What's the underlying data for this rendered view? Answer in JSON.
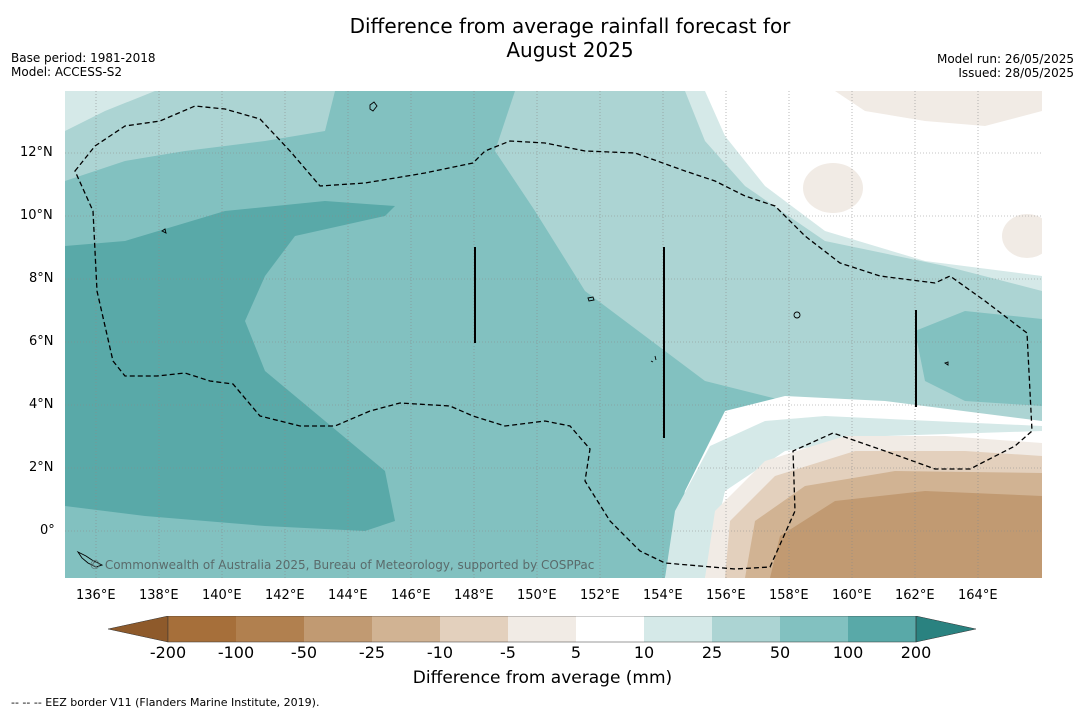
{
  "title_line1": "Difference from average rainfall forecast for",
  "title_line2": "August 2025",
  "base_period": "Base period: 1981-2018",
  "model": "Model: ACCESS-S2",
  "model_run": "Model run: 26/05/2025",
  "issued": "Issued: 28/05/2025",
  "copyright": "© Commonwealth of Australia 2025, Bureau of Meteorology, supported by COSPPac",
  "footnote": "-- -- -- EEZ border V11 (Flanders Marine Institute, 2019).",
  "colorbar_title": "Difference from average (mm)",
  "map": {
    "x_labels": [
      "136°E",
      "138°E",
      "140°E",
      "142°E",
      "144°E",
      "146°E",
      "148°E",
      "150°E",
      "152°E",
      "154°E",
      "156°E",
      "158°E",
      "160°E",
      "162°E",
      "164°E"
    ],
    "y_labels": [
      "12°N",
      "10°N",
      "8°N",
      "6°N",
      "4°N",
      "2°N",
      "0°"
    ],
    "lon_values": [
      136,
      138,
      140,
      142,
      144,
      146,
      148,
      150,
      152,
      154,
      156,
      158,
      160,
      162,
      164
    ],
    "lat_values": [
      12,
      10,
      8,
      6,
      4,
      2,
      0
    ],
    "lon_range": [
      135,
      166
    ],
    "lat_range": [
      -1.5,
      14
    ],
    "grid": true
  },
  "colorbar": {
    "tick_labels": [
      "-200",
      "-100",
      "-50",
      "-25",
      "-10",
      "-5",
      "5",
      "10",
      "25",
      "50",
      "100",
      "200"
    ],
    "colors": [
      "#a66f3a",
      "#b1804f",
      "#c19a72",
      "#d1b393",
      "#e3d0bd",
      "#f1ebe5",
      "#ffffff",
      "#d5e9e8",
      "#acd4d3",
      "#82c1c0",
      "#59a9a8",
      "#359896",
      "#2a8280"
    ]
  },
  "legend_colors": {
    "strong_wet": "#59a9a8",
    "wet": "#82c1c0",
    "mod_wet": "#acd4d3",
    "light_wet": "#d5e9e8",
    "light_dry": "#f1ebe5",
    "mod_dry": "#e3d0bd",
    "dry": "#d1b393",
    "very_dry": "#c19a72"
  }
}
